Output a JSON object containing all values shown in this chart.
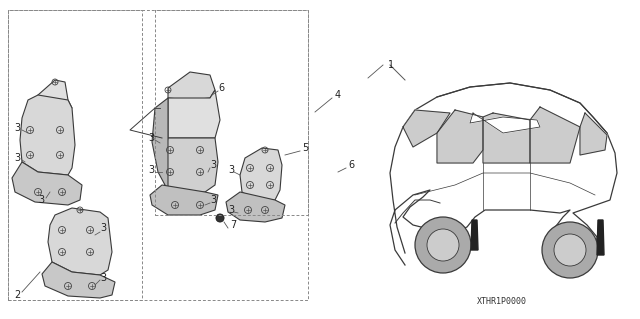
{
  "bg_color": "#ffffff",
  "lc": "#3a3a3a",
  "dc": "#555555",
  "part_code": "XTHR1P0000",
  "figsize": [
    6.4,
    3.19
  ],
  "dpi": 100,
  "label_fs": 7.0,
  "label_color": "#222222"
}
